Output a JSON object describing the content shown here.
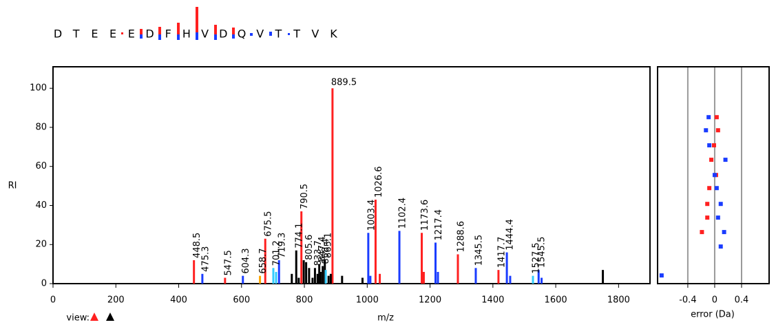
{
  "sequence": [
    "D",
    "T",
    "E",
    "E",
    "E",
    "D",
    "F",
    "H",
    "V",
    "D",
    "Q",
    "V",
    "T",
    "T",
    "V",
    "K"
  ],
  "view_label": "view:",
  "chart_data": [
    {
      "type": "spectrum",
      "xlabel": "m/z",
      "ylabel": "RI",
      "xlim": [
        0,
        1900
      ],
      "ylim": [
        0,
        111
      ],
      "xticks": [
        0,
        200,
        400,
        600,
        800,
        1000,
        1200,
        1400,
        1600,
        1800
      ],
      "yticks": [
        0,
        20,
        40,
        60,
        80,
        100
      ],
      "series": [
        {
          "color": "#ff2020",
          "labeled": true,
          "x": [
            448.5,
            547.5,
            675.5,
            790.5,
            889.5,
            1026.6,
            1173.6,
            1288.6,
            1417.7
          ],
          "values": [
            12,
            3,
            23,
            37,
            100,
            43,
            26,
            15,
            7
          ]
        },
        {
          "color": "#1a3cff",
          "labeled": true,
          "x": [
            475.3,
            604.3,
            719.3,
            1003.4,
            1102.4,
            1217.4,
            1345.5,
            1444.4,
            1545.5
          ],
          "values": [
            5,
            4,
            12,
            26,
            27,
            21,
            8,
            16,
            7
          ]
        },
        {
          "color": "#33ccff",
          "labeled": true,
          "x": [
            701.2,
            1527.5
          ],
          "values": [
            8,
            4
          ]
        },
        {
          "color": "#ffa500",
          "labeled": true,
          "x": [
            658.7
          ],
          "values": [
            4
          ]
        },
        {
          "color": "#000000",
          "labeled": true,
          "x": [
            774.1,
            805.6,
            833.7,
            847.4,
            858.4,
            865.1
          ],
          "values": [
            17,
            11,
            8,
            10,
            9,
            12
          ]
        },
        {
          "color": "#000000",
          "labeled": false,
          "x": [
            760,
            782,
            798,
            815,
            826,
            842,
            852,
            877,
            884,
            920,
            985,
            1750
          ],
          "values": [
            5,
            3,
            12,
            8,
            3,
            5,
            6,
            4,
            5,
            4,
            3,
            7
          ]
        },
        {
          "color": "#ff2020",
          "labeled": false,
          "x": [
            1040,
            1180
          ],
          "values": [
            5,
            6
          ]
        },
        {
          "color": "#1a3cff",
          "labeled": false,
          "x": [
            1010,
            1225,
            1455,
            1555
          ],
          "values": [
            4,
            6,
            4,
            3
          ]
        },
        {
          "color": "#33ccff",
          "labeled": false,
          "x": [
            710,
            868
          ],
          "values": [
            6,
            7
          ]
        }
      ]
    },
    {
      "type": "scatter",
      "xlabel": "error (Da)",
      "xlim": [
        -0.85,
        0.81
      ],
      "ylim": [
        0,
        111
      ],
      "xticks": [
        -0.4,
        0,
        0.4
      ],
      "grid": true,
      "series": [
        {
          "color": "#ff2020",
          "x": [
            0.03,
            0.05,
            -0.01,
            -0.05,
            0.02,
            -0.08,
            -0.11,
            -0.11,
            -0.19
          ],
          "values": [
            85.2,
            78.5,
            70.8,
            63.4,
            55.6,
            48.9,
            40.8,
            33.8,
            26.4
          ]
        },
        {
          "color": "#1a3cff",
          "x": [
            -0.09,
            -0.13,
            -0.08,
            0.16,
            0.0,
            0.03,
            0.09,
            0.05,
            0.14,
            0.09,
            -0.79
          ],
          "values": [
            85.2,
            78.5,
            70.8,
            63.4,
            55.6,
            48.9,
            40.8,
            33.8,
            26.4,
            19.0,
            4.2
          ]
        }
      ]
    }
  ]
}
